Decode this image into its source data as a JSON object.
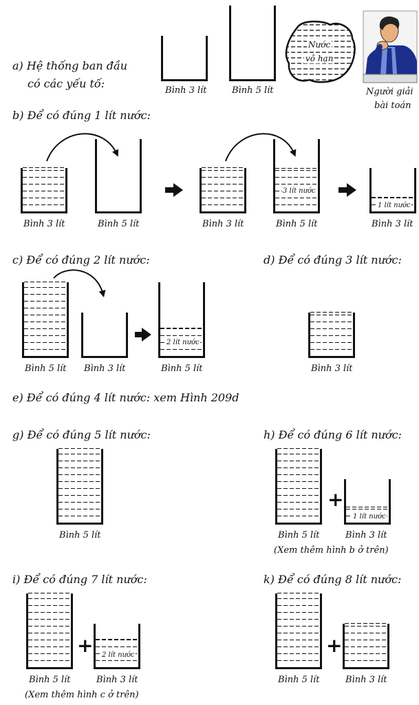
{
  "a": {
    "title_line1": "a) Hệ thống ban đầu",
    "title_line2": "có các yếu tố:",
    "jar3_caption": "Bình 3 lít",
    "jar5_caption": "Bình 5 lít",
    "water_line1": "Nước",
    "water_line2": "vô hạn",
    "solver_line1": "Người giải",
    "solver_line2": "bài toán"
  },
  "b": {
    "title": "b) Để có đúng 1 lít nước:",
    "cap1": "Bình 3 lít",
    "cap2": "Bình 5 lít",
    "cap3": "Bình 3 lít",
    "cap4": "Bình 5 lít",
    "cap5": "Bình 3 lít",
    "label_3l": "3 lít nước",
    "label_1l": "1 lít nước"
  },
  "c": {
    "title": "c) Để có đúng 2 lít nước:",
    "cap1": "Bình 5 lít",
    "cap2": "Bình 3 lít",
    "cap3": "Bình 5 lít",
    "label_2l": "2 lít nước"
  },
  "d": {
    "title": "d) Để có đúng 3 lít nước:",
    "cap1": "Bình 3 lít"
  },
  "e": {
    "title": "e) Để có đúng 4 lít nước: xem Hình 209d"
  },
  "g": {
    "title": "g) Để có đúng 5 lít nước:",
    "cap1": "Bình 5 lít"
  },
  "h": {
    "title": "h) Để có đúng 6 lít nước:",
    "cap1": "Bình 5 lít",
    "cap2": "Bình 3 lít",
    "label_1l": "1 lít nước",
    "note": "(Xem thêm hình b ở trên)"
  },
  "i": {
    "title": "i) Để có đúng 7 lít nước:",
    "cap1": "Bình 5 lít",
    "cap2": "Bình 3 lít",
    "label_2l": "2 lít nước",
    "note": "(Xem thêm hình c ở trên)"
  },
  "k": {
    "title": "k) Để có đúng 8 lít nước:",
    "cap1": "Bình 5 lít",
    "cap2": "Bình 3 lít"
  },
  "plus_sign": "+",
  "colors": {
    "ink": "#111111",
    "shirt": "#6f8fd8",
    "suit": "#1c2e8c",
    "skin": "#e9b07e"
  }
}
